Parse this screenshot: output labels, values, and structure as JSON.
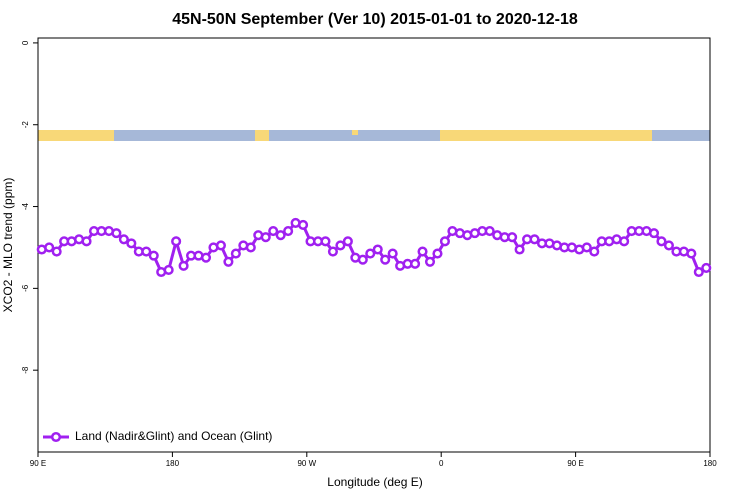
{
  "chart_data": {
    "type": "line",
    "title": "45N-50N September (Ver 10)   2015-01-01 to 2020-12-18",
    "x_label": "Longitude (deg E)",
    "y_label": "XCO2 - MLO trend (ppm)",
    "x": [
      92.5,
      97.5,
      102.5,
      107.5,
      112.5,
      117.5,
      122.5,
      127.5,
      132.5,
      137.5,
      142.5,
      147.5,
      152.5,
      157.5,
      162.5,
      167.5,
      172.5,
      177.5,
      182.5,
      187.5,
      192.5,
      197.5,
      202.5,
      207.5,
      212.5,
      217.5,
      222.5,
      227.5,
      232.5,
      237.5,
      242.5,
      247.5,
      252.5,
      257.5,
      262.5,
      267.5,
      272.5,
      277.5,
      282.5,
      287.5,
      292.5,
      297.5,
      302.5,
      307.5,
      312.5,
      317.5,
      322.5,
      327.5,
      332.5,
      337.5,
      342.5,
      347.5,
      352.5,
      357.5,
      362.5,
      367.5,
      372.5,
      377.5,
      382.5,
      387.5,
      392.5,
      397.5,
      402.5,
      407.5,
      412.5,
      417.5,
      422.5,
      427.5,
      432.5,
      437.5,
      442.5,
      447.5,
      452.5,
      457.5,
      462.5,
      467.5,
      472.5,
      477.5,
      482.5,
      487.5,
      492.5,
      497.5,
      502.5,
      507.5,
      512.5,
      517.5,
      522.5,
      527.5,
      532.5,
      537.5
    ],
    "series": [
      {
        "name": "Land (Nadir&Glint) and Ocean (Glint)",
        "color": "#a020f0",
        "values": [
          -5.05,
          -5.0,
          -5.1,
          -4.85,
          -4.85,
          -4.8,
          -4.85,
          -4.6,
          -4.6,
          -4.6,
          -4.65,
          -4.8,
          -4.9,
          -5.1,
          -5.1,
          -5.2,
          -5.6,
          -5.55,
          -4.85,
          -5.45,
          -5.2,
          -5.2,
          -5.25,
          -5.0,
          -4.95,
          -5.35,
          -5.15,
          -4.95,
          -5.0,
          -4.7,
          -4.75,
          -4.6,
          -4.7,
          -4.6,
          -4.4,
          -4.45,
          -4.85,
          -4.85,
          -4.85,
          -5.1,
          -4.95,
          -4.85,
          -5.25,
          -5.3,
          -5.15,
          -5.05,
          -5.3,
          -5.15,
          -5.45,
          -5.4,
          -5.4,
          -5.1,
          -5.35,
          -5.15,
          -4.85,
          -4.6,
          -4.65,
          -4.7,
          -4.65,
          -4.6,
          -4.6,
          -4.7,
          -4.75,
          -4.75,
          -5.05,
          -4.8,
          -4.8,
          -4.9,
          -4.9,
          -4.95,
          -5.0,
          -5.0,
          -5.05,
          -5.0,
          -5.1,
          -4.85,
          -4.85,
          -4.8,
          -4.85,
          -4.6,
          -4.6,
          -4.6,
          -4.65,
          -4.85,
          -4.95,
          -5.1,
          -5.1,
          -5.15,
          -5.6,
          -5.5
        ]
      }
    ],
    "xlim": [
      90,
      540
    ],
    "xticks": [
      {
        "value": 90,
        "label": "90 E"
      },
      180,
      {
        "value": 270,
        "label": "90 W"
      },
      {
        "value": 360,
        "label": "0"
      },
      {
        "value": 450,
        "label": "90 E"
      },
      {
        "value": 540,
        "label": "180"
      }
    ],
    "ylim": [
      -10,
      0.12
    ],
    "yticks": [
      0,
      -2,
      -4,
      -6,
      -8
    ],
    "legend": "bottom-left"
  }
}
